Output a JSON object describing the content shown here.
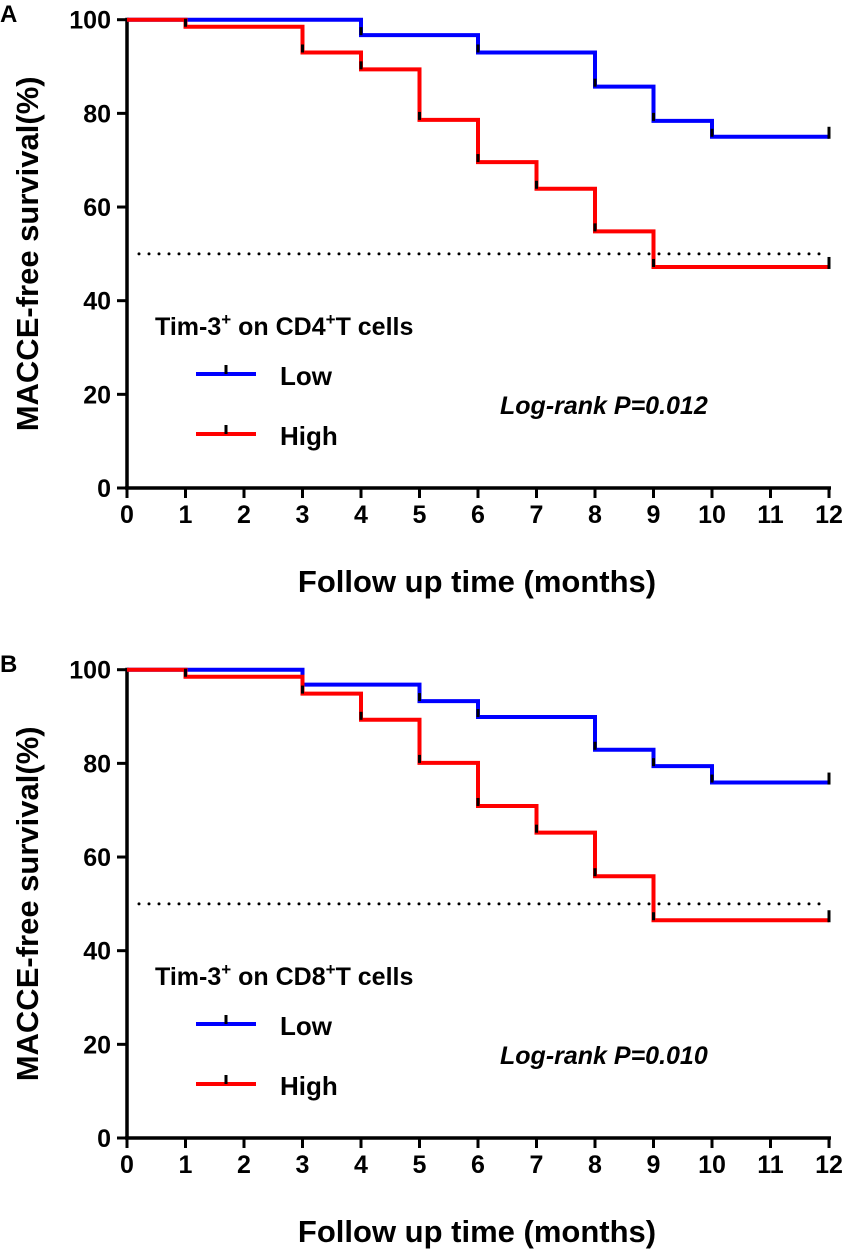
{
  "chart_data": [
    {
      "type": "line",
      "subtype": "kaplan-meier step",
      "panel_label": "A",
      "xlabel": "Follow up time (months)",
      "ylabel": "MACCE-free survival(%)",
      "xlim": [
        0,
        12
      ],
      "ylim": [
        0,
        100
      ],
      "xticks": [
        "0",
        "1",
        "2",
        "3",
        "4",
        "5",
        "6",
        "7",
        "8",
        "9",
        "10",
        "11",
        "12"
      ],
      "yticks": [
        "0",
        "20",
        "40",
        "60",
        "80",
        "100"
      ],
      "reference_line": 50,
      "legend_title": {
        "prefix": "Tim-3",
        "sup1": "+",
        "mid": " on CD4",
        "sup2": "+",
        "suffix": "T cells"
      },
      "legend_placement": "lower-left",
      "annotation": "Log-rank P=0.012",
      "series": [
        {
          "name": "Low",
          "color": "#0000ff",
          "x": [
            0,
            4,
            6,
            8,
            9,
            10,
            12
          ],
          "y": [
            100,
            96.7,
            93.0,
            85.7,
            78.4,
            75.0,
            75.0
          ]
        },
        {
          "name": "High",
          "color": "#ff0000",
          "x": [
            0,
            1,
            3,
            4,
            5,
            6,
            7,
            8,
            9,
            12
          ],
          "y": [
            100,
            98.5,
            93.0,
            89.4,
            78.6,
            69.6,
            63.9,
            54.8,
            47.2,
            47.2
          ]
        }
      ]
    },
    {
      "type": "line",
      "subtype": "kaplan-meier step",
      "panel_label": "B",
      "xlabel": "Follow up time (months)",
      "ylabel": "MACCE-free survival(%)",
      "xlim": [
        0,
        12
      ],
      "ylim": [
        0,
        100
      ],
      "xticks": [
        "0",
        "1",
        "2",
        "3",
        "4",
        "5",
        "6",
        "7",
        "8",
        "9",
        "10",
        "11",
        "12"
      ],
      "yticks": [
        "0",
        "20",
        "40",
        "60",
        "80",
        "100"
      ],
      "reference_line": 50,
      "legend_title": {
        "prefix": "Tim-3",
        "sup1": "+",
        "mid": " on CD8",
        "sup2": "+",
        "suffix": "T cells"
      },
      "legend_placement": "lower-left",
      "annotation": "Log-rank P=0.010",
      "series": [
        {
          "name": "Low",
          "color": "#0000ff",
          "x": [
            0,
            3,
            5,
            6,
            8,
            9,
            10,
            12
          ],
          "y": [
            100,
            96.8,
            93.3,
            89.9,
            82.9,
            79.4,
            75.9,
            75.9
          ]
        },
        {
          "name": "High",
          "color": "#ff0000",
          "x": [
            0,
            1,
            3,
            4,
            5,
            6,
            7,
            8,
            9,
            12
          ],
          "y": [
            100,
            98.5,
            94.9,
            89.3,
            80.1,
            70.9,
            65.2,
            55.9,
            46.5,
            46.5
          ]
        }
      ]
    }
  ]
}
